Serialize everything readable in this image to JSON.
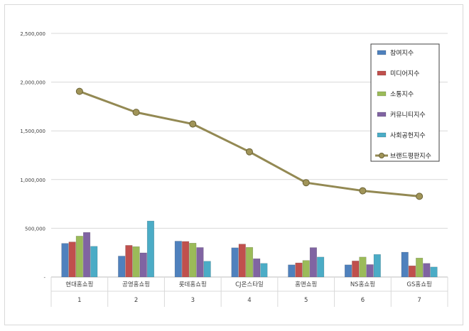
{
  "chart_data": {
    "type": "bar",
    "title": "",
    "xlabel": "",
    "ylabel": "",
    "ylim": [
      0,
      2500000
    ],
    "yticks": [
      "-",
      "500,000",
      "1,000,000",
      "1,500,000",
      "2,000,000",
      "2,500,000"
    ],
    "categories": [
      "현대홈쇼핑",
      "공영홈쇼핑",
      "롯데홈쇼핑",
      "CJ온스타일",
      "홈앤쇼핑",
      "NS홈쇼핑",
      "GS홈쇼핑"
    ],
    "ranks": [
      "1",
      "2",
      "3",
      "4",
      "5",
      "6",
      "7"
    ],
    "series": [
      {
        "name": "참여지수",
        "values": [
          345000,
          215000,
          368000,
          300000,
          125000,
          125000,
          255000
        ],
        "color": "#4f81bd"
      },
      {
        "name": "미디어지수",
        "values": [
          360000,
          325000,
          365000,
          338000,
          145000,
          165000,
          115000
        ],
        "color": "#c0504d"
      },
      {
        "name": "소통지수",
        "values": [
          420000,
          312000,
          348000,
          305000,
          170000,
          205000,
          195000
        ],
        "color": "#9bbb59"
      },
      {
        "name": "커뮤니티지수",
        "values": [
          458000,
          248000,
          303000,
          188000,
          302000,
          128000,
          140000
        ],
        "color": "#8064a2"
      },
      {
        "name": "사회공헌지수",
        "values": [
          315000,
          575000,
          162000,
          140000,
          205000,
          232000,
          103000
        ],
        "color": "#4bacc6"
      }
    ],
    "line_series": {
      "name": "브랜드평판지수",
      "values": [
        1905000,
        1690000,
        1570000,
        1285000,
        968000,
        885000,
        828000
      ],
      "color": "#938953"
    },
    "grid": true,
    "legend_position": "right"
  }
}
